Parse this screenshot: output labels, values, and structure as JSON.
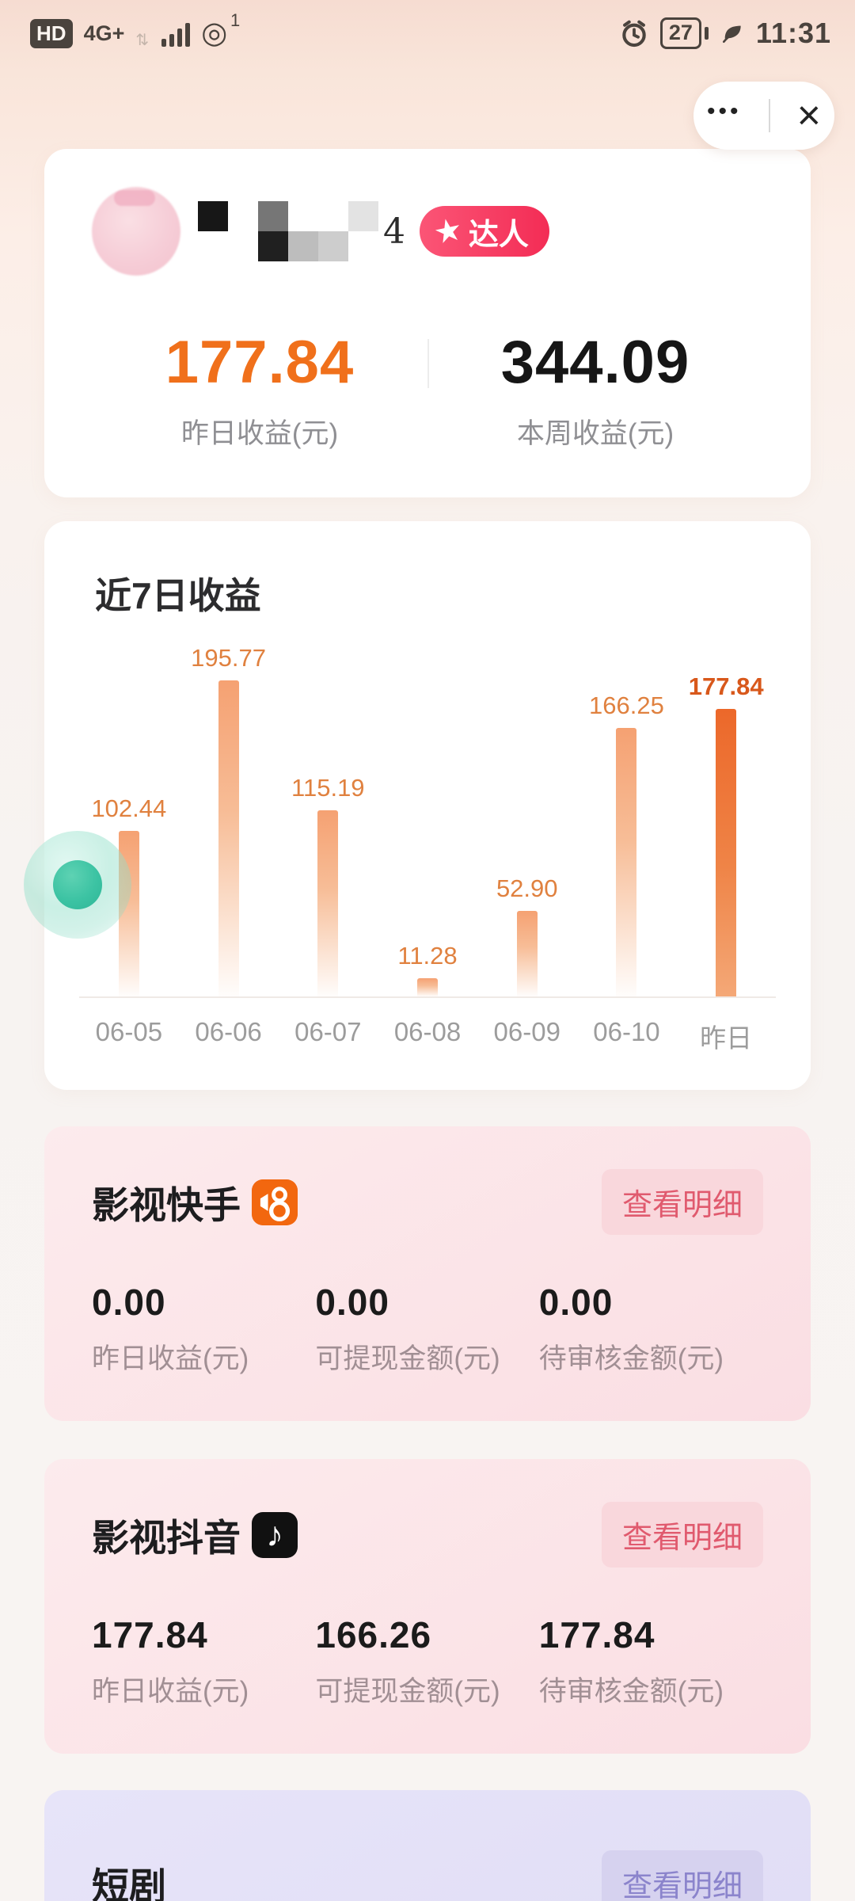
{
  "status_bar": {
    "hd": "HD",
    "network": "4G+",
    "hotspot_icon": "personal-hotspot",
    "hotspot_count": "1",
    "alarm_icon": "alarm-clock",
    "battery_percent": "27",
    "power_save_icon": "leaf",
    "time": "11:31"
  },
  "capsule": {
    "more": "•••",
    "close": "×"
  },
  "profile_card": {
    "name_suffix": "4",
    "badge": {
      "star": "★",
      "label": "达人"
    },
    "yesterday": {
      "value": "177.84",
      "label": "昨日收益(元)"
    },
    "week": {
      "value": "344.09",
      "label": "本周收益(元)"
    }
  },
  "chart_data": {
    "type": "bar",
    "title": "近7日收益",
    "categories": [
      "06-05",
      "06-06",
      "06-07",
      "06-08",
      "06-09",
      "06-10",
      "昨日"
    ],
    "values": [
      102.44,
      195.77,
      115.19,
      11.28,
      52.9,
      166.25,
      177.84
    ],
    "value_labels": [
      "102.44",
      "195.77",
      "115.19",
      "11.28",
      "52.90",
      "166.25",
      "177.84"
    ],
    "highlight_index": 6,
    "xlabel": "",
    "ylabel": "",
    "ylim": [
      0,
      200
    ],
    "grid": false,
    "legend": "none",
    "bar_color": "#f5a172",
    "highlight_color": "#ec682a",
    "label_color": "#e0813f"
  },
  "platform_cards": [
    {
      "title": "影视快手",
      "icon": "kuaishou-icon",
      "action_label": "查看明细",
      "stats": [
        {
          "value": "0.00",
          "label": "昨日收益(元)"
        },
        {
          "value": "0.00",
          "label": "可提现金额(元)"
        },
        {
          "value": "0.00",
          "label": "待审核金额(元)"
        }
      ]
    },
    {
      "title": "影视抖音",
      "icon": "douyin-icon",
      "icon_glyph": "♪",
      "action_label": "查看明细",
      "stats": [
        {
          "value": "177.84",
          "label": "昨日收益(元)"
        },
        {
          "value": "166.26",
          "label": "可提现金额(元)"
        },
        {
          "value": "177.84",
          "label": "待审核金额(元)"
        }
      ]
    },
    {
      "title": "短剧",
      "action_label": "查看明细"
    }
  ],
  "colors": {
    "accent_orange": "#f0701b",
    "badge_pink": "#f32c55",
    "pink_action_text": "#e05a6e",
    "purple_action_text": "#8b84cc",
    "ball_teal": "#3cc3a3"
  }
}
